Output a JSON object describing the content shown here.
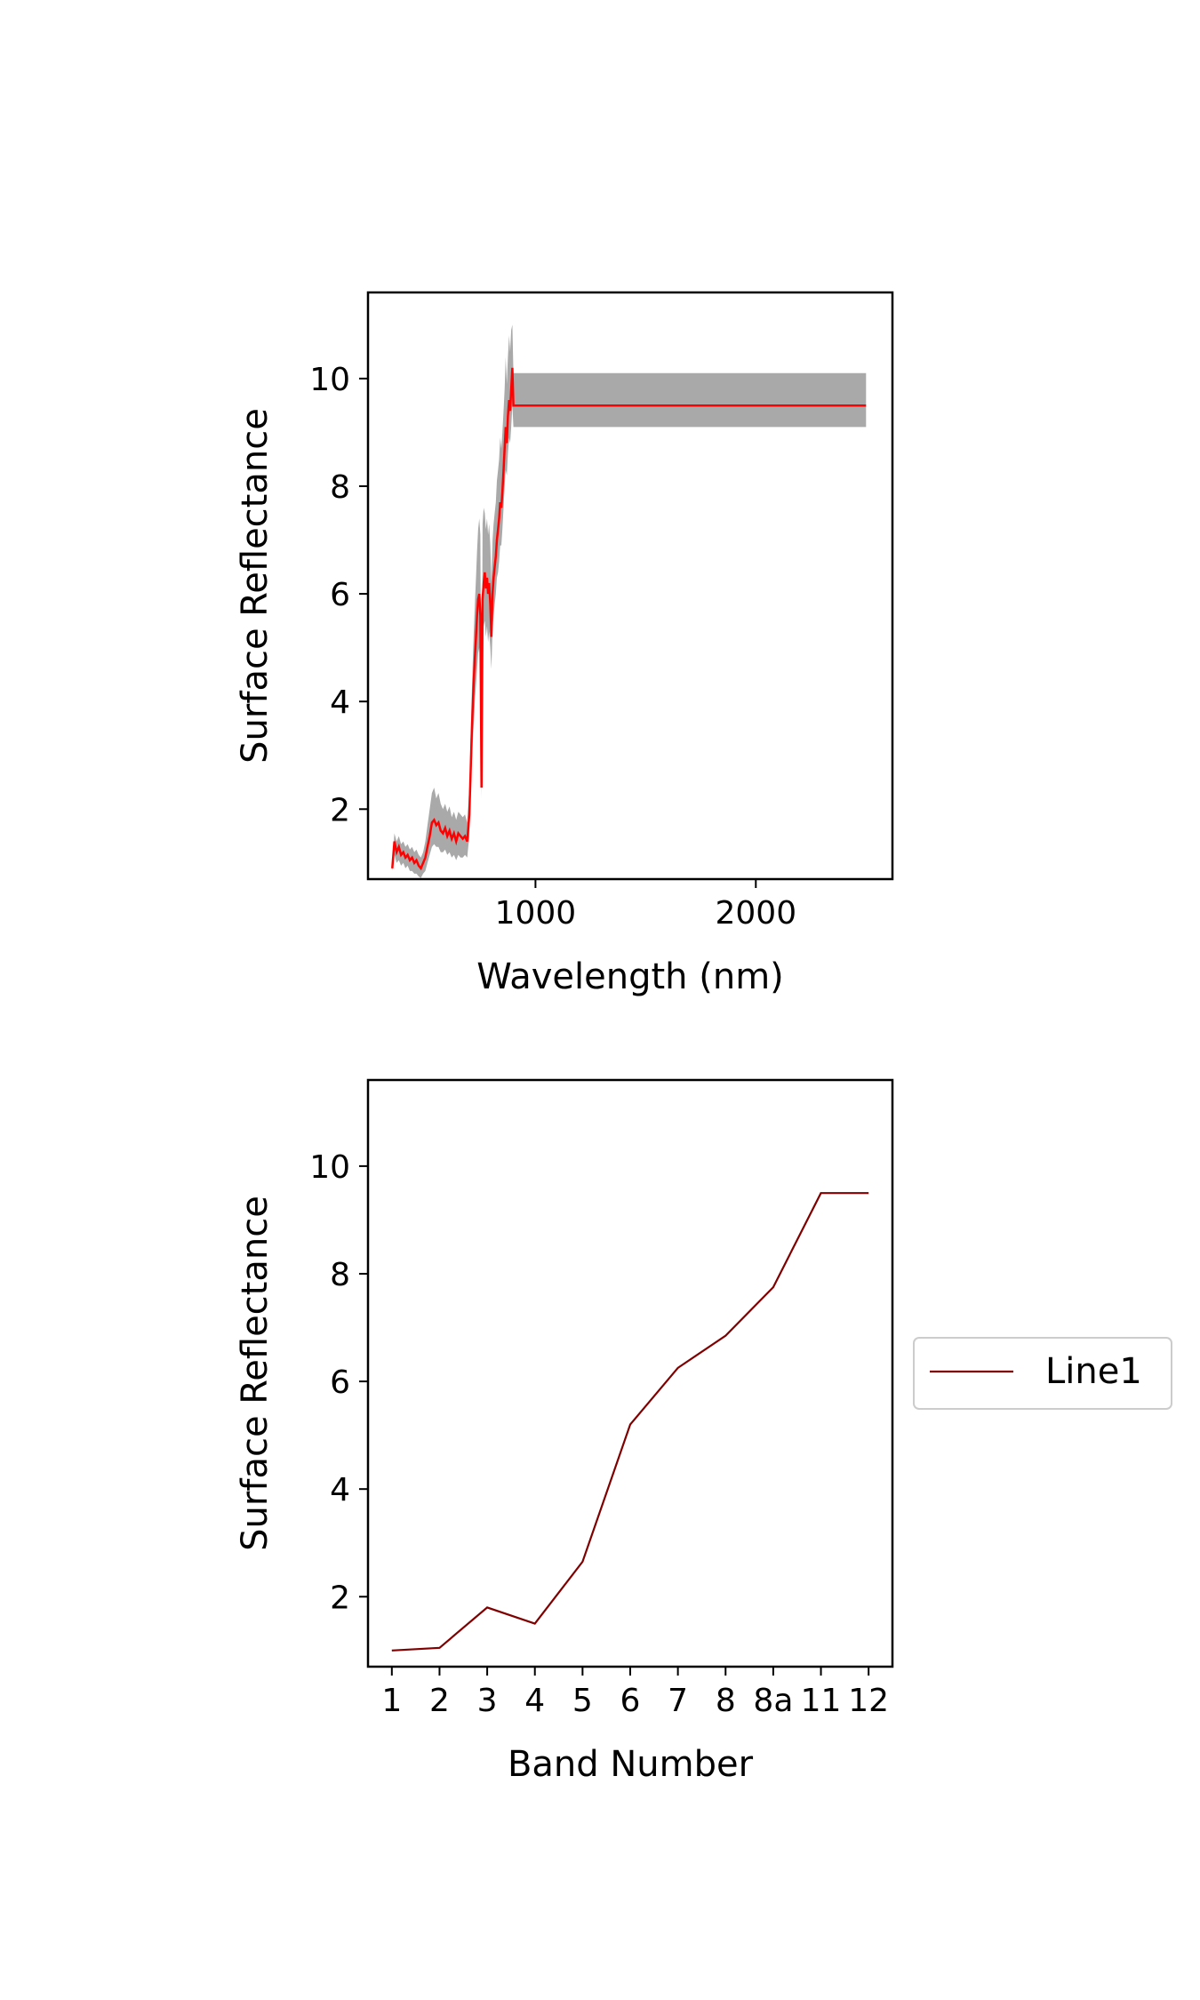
{
  "chart_data": [
    {
      "type": "line",
      "title": "",
      "xlabel": "Wavelength (nm)",
      "ylabel": "Surface Reflectance",
      "xlim": [
        240,
        2620
      ],
      "ylim": [
        0.7,
        11.6
      ],
      "xticks": [
        1000,
        2000
      ],
      "xtick_labels": [
        "1000",
        "2000"
      ],
      "yticks": [
        2,
        4,
        6,
        8,
        10
      ],
      "ytick_labels": [
        "2",
        "4",
        "6",
        "8",
        "10"
      ],
      "grid": false,
      "colors": {
        "mean_line": "#ff0000",
        "band": "#a9a9a9"
      },
      "series": [
        {
          "x": [
            350,
            360,
            370,
            380,
            390,
            400,
            410,
            420,
            430,
            440,
            450,
            460,
            470,
            480,
            490,
            500,
            510,
            520,
            530,
            540,
            550,
            560,
            570,
            580,
            590,
            600,
            610,
            620,
            630,
            640,
            650,
            660,
            670,
            680,
            690,
            700,
            705,
            710,
            715,
            720,
            725,
            730,
            735,
            740,
            745,
            750,
            755,
            760,
            765,
            770,
            775,
            780,
            785,
            790,
            795,
            800,
            805,
            810,
            815,
            820,
            825,
            830,
            835,
            840,
            845,
            850,
            855,
            860,
            865,
            870,
            875,
            880,
            885,
            890,
            895,
            900,
            1000,
            1500,
            2000,
            2500
          ],
          "y": [
            0.9,
            1.4,
            1.2,
            1.3,
            1.15,
            1.2,
            1.1,
            1.15,
            1.05,
            1.1,
            1.0,
            1.05,
            0.95,
            0.9,
            1.0,
            1.1,
            1.3,
            1.5,
            1.75,
            1.8,
            1.7,
            1.75,
            1.6,
            1.55,
            1.65,
            1.5,
            1.6,
            1.45,
            1.55,
            1.4,
            1.55,
            1.5,
            1.45,
            1.5,
            1.4,
            1.9,
            2.6,
            3.3,
            3.9,
            4.4,
            4.8,
            5.2,
            5.6,
            5.9,
            6.0,
            5.6,
            2.4,
            5.9,
            6.2,
            6.4,
            6.1,
            6.3,
            6.0,
            6.2,
            5.8,
            5.2,
            6.0,
            6.3,
            6.5,
            6.7,
            7.0,
            7.2,
            7.4,
            7.7,
            7.6,
            7.9,
            8.3,
            8.7,
            9.1,
            8.8,
            9.3,
            9.6,
            9.4,
            9.8,
            10.2,
            9.5,
            9.5,
            9.5,
            9.5,
            9.5
          ],
          "band_low": [
            0.85,
            1.15,
            1.0,
            1.05,
            0.95,
            1.0,
            0.9,
            0.95,
            0.85,
            0.85,
            0.8,
            0.8,
            0.75,
            0.72,
            0.8,
            0.85,
            1.0,
            1.15,
            1.3,
            1.35,
            1.3,
            1.3,
            1.2,
            1.2,
            1.25,
            1.15,
            1.2,
            1.1,
            1.15,
            1.05,
            1.15,
            1.1,
            1.1,
            1.15,
            1.1,
            1.5,
            2.1,
            2.7,
            3.2,
            3.6,
            4.0,
            4.3,
            4.6,
            4.9,
            5.0,
            4.6,
            2.2,
            5.1,
            5.4,
            5.5,
            5.2,
            5.4,
            5.1,
            5.3,
            5.0,
            4.6,
            5.3,
            5.6,
            5.8,
            6.0,
            6.3,
            6.4,
            6.6,
            6.9,
            6.9,
            7.2,
            7.6,
            8.0,
            8.3,
            8.2,
            8.6,
            8.9,
            8.8,
            9.1,
            9.5,
            9.1,
            9.1,
            9.1,
            9.1,
            9.1
          ],
          "band_high": [
            1.0,
            1.55,
            1.4,
            1.5,
            1.35,
            1.4,
            1.3,
            1.35,
            1.25,
            1.3,
            1.2,
            1.25,
            1.15,
            1.1,
            1.2,
            1.4,
            1.7,
            2.0,
            2.3,
            2.4,
            2.2,
            2.3,
            2.1,
            2.0,
            2.1,
            1.95,
            2.05,
            1.85,
            1.95,
            1.8,
            1.95,
            1.9,
            1.85,
            1.9,
            1.75,
            2.4,
            3.2,
            4.0,
            4.7,
            5.3,
            5.8,
            6.3,
            6.8,
            7.2,
            7.4,
            7.1,
            2.7,
            7.3,
            7.6,
            7.5,
            7.2,
            7.4,
            7.1,
            7.3,
            6.9,
            6.2,
            7.0,
            7.3,
            7.5,
            7.7,
            8.1,
            8.3,
            8.5,
            8.9,
            8.7,
            9.0,
            9.4,
            9.8,
            10.4,
            9.9,
            10.4,
            10.8,
            10.5,
            10.9,
            11.0,
            10.1,
            10.1,
            10.1,
            10.1,
            10.1
          ]
        }
      ]
    },
    {
      "type": "line",
      "title": "",
      "xlabel": "Band Number",
      "ylabel": "Surface Reflectance",
      "categories": [
        "1",
        "2",
        "3",
        "4",
        "5",
        "6",
        "7",
        "8",
        "8a",
        "11",
        "12"
      ],
      "ylim": [
        0.7,
        11.6
      ],
      "yticks": [
        2,
        4,
        6,
        8,
        10
      ],
      "ytick_labels": [
        "2",
        "4",
        "6",
        "8",
        "10"
      ],
      "grid": false,
      "legend": {
        "placement": "right",
        "entries": [
          "Line1"
        ]
      },
      "colors": {
        "line": "#800000"
      },
      "series": [
        {
          "name": "Line1",
          "values": [
            1.0,
            1.05,
            1.8,
            1.5,
            2.65,
            5.2,
            6.25,
            6.85,
            7.75,
            9.5,
            9.5
          ]
        }
      ]
    }
  ]
}
